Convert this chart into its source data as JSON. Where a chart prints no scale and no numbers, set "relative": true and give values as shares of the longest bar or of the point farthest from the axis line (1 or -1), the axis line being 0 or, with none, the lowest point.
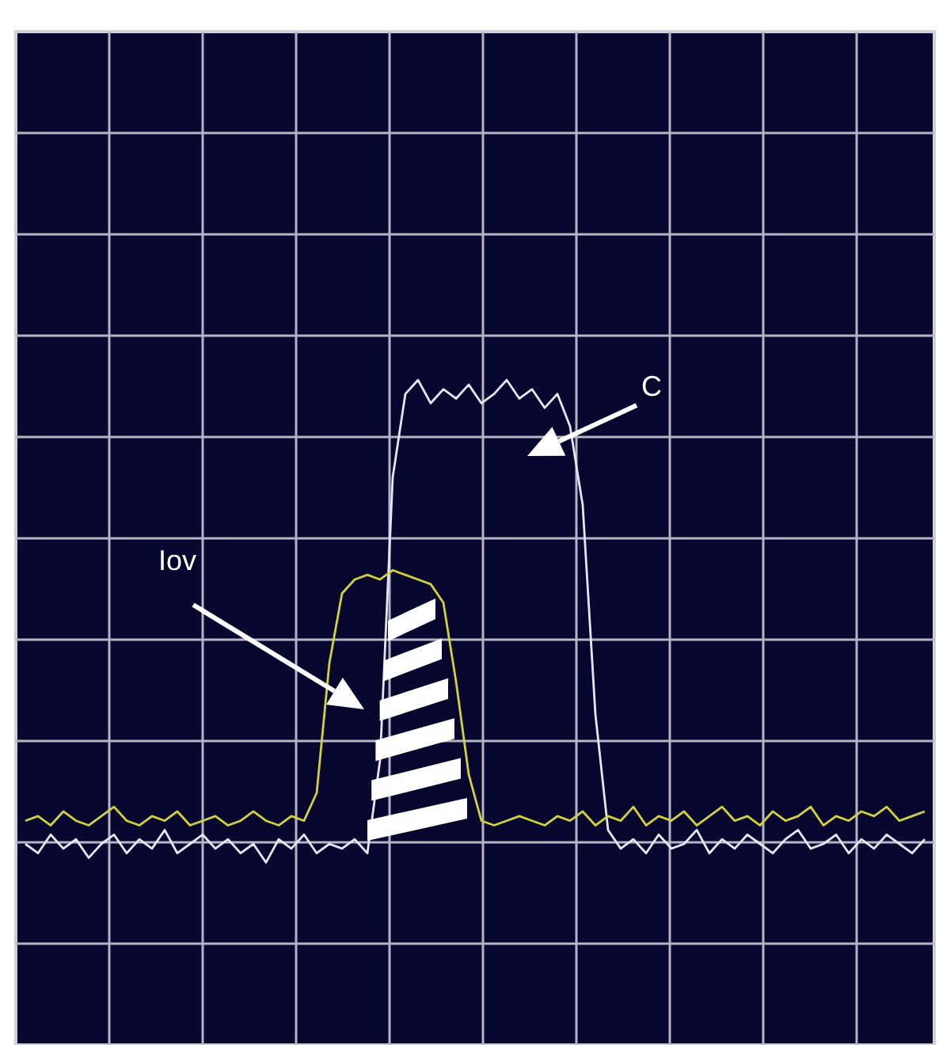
{
  "chart_data": {
    "type": "line",
    "relative": true,
    "grid": true,
    "categories": [
      null,
      null,
      null,
      null,
      null,
      null,
      null,
      null,
      null,
      null,
      null,
      null,
      null,
      null,
      null,
      null,
      null,
      null,
      null,
      null,
      null,
      null,
      null,
      null,
      null,
      null,
      null,
      null,
      null,
      null,
      null,
      null,
      null,
      null,
      null,
      null,
      null,
      null,
      null,
      null,
      null,
      null,
      null,
      null,
      null,
      null,
      null,
      null,
      null,
      null,
      null,
      null,
      null,
      null,
      null,
      null,
      null,
      null,
      null,
      null,
      null,
      null,
      null,
      null,
      null,
      null,
      null,
      null,
      null,
      null,
      null,
      null
    ],
    "series": [
      {
        "color": "#e6e6f2",
        "values": [
          0.0,
          -0.02,
          0.02,
          -0.01,
          0.01,
          -0.03,
          0.0,
          0.02,
          -0.02,
          0.01,
          -0.01,
          0.03,
          -0.02,
          0.0,
          0.02,
          -0.01,
          0.01,
          -0.02,
          0.0,
          -0.04,
          0.01,
          -0.01,
          0.02,
          -0.02,
          0.0,
          -0.01,
          0.01,
          -0.02,
          0.18,
          0.79,
          0.97,
          1.0,
          0.95,
          0.98,
          0.96,
          0.99,
          0.95,
          0.97,
          1.0,
          0.96,
          0.98,
          0.94,
          0.97,
          0.9,
          0.73,
          0.28,
          0.03,
          -0.01,
          0.01,
          -0.02,
          0.02,
          -0.01,
          0.0,
          0.03,
          -0.02,
          0.01,
          -0.01,
          0.02,
          0.0,
          -0.02,
          0.01,
          0.03,
          -0.01,
          0.0,
          0.02,
          -0.02,
          0.01,
          -0.01,
          0.02,
          0.0,
          -0.02,
          0.01
        ]
      },
      {
        "color": "#d2d23c",
        "values": [
          0.05,
          0.06,
          0.04,
          0.07,
          0.05,
          0.04,
          0.06,
          0.08,
          0.05,
          0.04,
          0.06,
          0.05,
          0.07,
          0.04,
          0.05,
          0.06,
          0.04,
          0.05,
          0.07,
          0.05,
          0.04,
          0.06,
          0.05,
          0.11,
          0.39,
          0.54,
          0.57,
          0.58,
          0.57,
          0.59,
          0.58,
          0.57,
          0.56,
          0.52,
          0.35,
          0.15,
          0.05,
          0.04,
          0.05,
          0.06,
          0.05,
          0.04,
          0.06,
          0.05,
          0.07,
          0.04,
          0.06,
          0.05,
          0.08,
          0.04,
          0.06,
          0.05,
          0.07,
          0.04,
          0.06,
          0.08,
          0.05,
          0.06,
          0.04,
          0.07,
          0.05,
          0.06,
          0.08,
          0.04,
          0.06,
          0.05,
          0.07,
          0.06,
          0.08,
          0.05,
          0.06,
          0.07
        ]
      }
    ],
    "annotations": [
      "C",
      "Iov"
    ]
  }
}
